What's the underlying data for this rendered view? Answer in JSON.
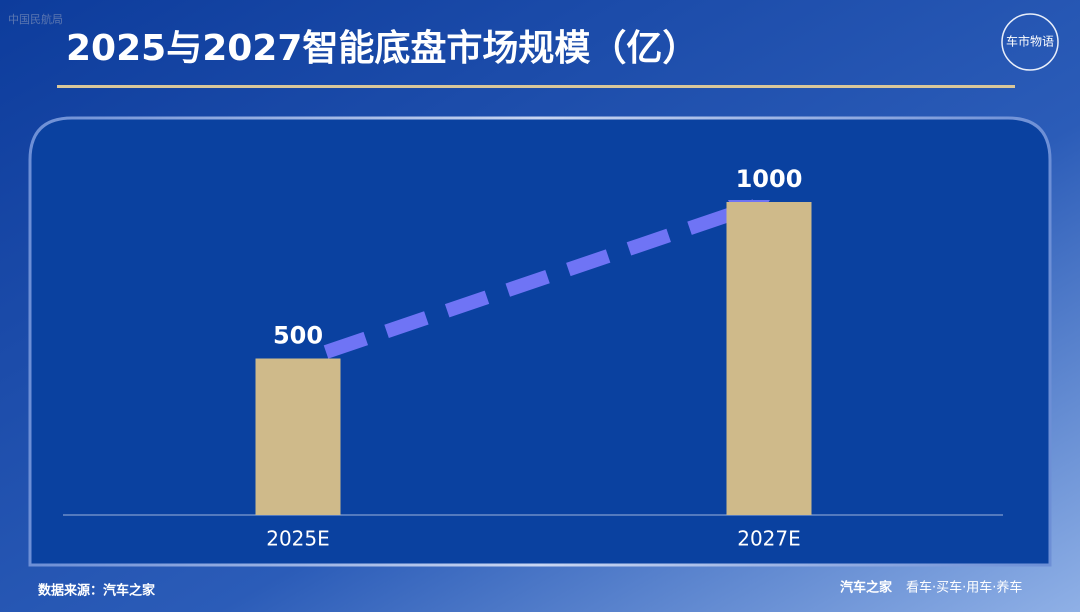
{
  "watermark_top": "中国民航局",
  "logo": "车市物语",
  "source": "数据来源：汽车之家",
  "brand": "汽车之家",
  "slogan": "看车·买车·用车·养车",
  "chart_data": {
    "type": "bar",
    "title": "2025与2027智能底盘市场规模（亿）",
    "categories": [
      "2025E",
      "2027E"
    ],
    "values": [
      500,
      1000
    ],
    "color": "#cfba8a"
  }
}
